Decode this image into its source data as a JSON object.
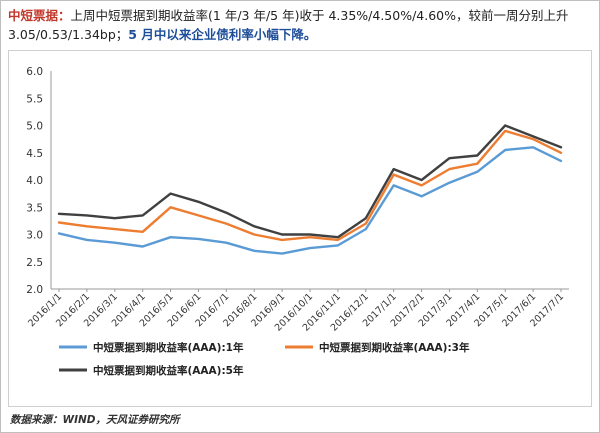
{
  "headline": {
    "lead": "中短票据：",
    "body": "上周中短票据到期收益率(1 年/3 年/5 年)收于 4.35%/4.50%/4.60%，较前一周分别上升 3.05/0.53/1.34bp；",
    "emph": "5 月中以来企业债利率小幅下降。"
  },
  "source": "数据来源：WIND，天风证券研究所",
  "chart_data": {
    "type": "line",
    "title": "",
    "xlabel": "",
    "ylabel": "",
    "ylim": [
      2.0,
      6.0
    ],
    "yticks": [
      "2.0",
      "2.5",
      "3.0",
      "3.5",
      "4.0",
      "4.5",
      "5.0",
      "5.5",
      "6.0"
    ],
    "xticks": [
      "2016/1/1",
      "2016/2/1",
      "2016/3/1",
      "2016/4/1",
      "2016/5/1",
      "2016/6/1",
      "2016/7/1",
      "2016/8/1",
      "2016/9/1",
      "2016/10/1",
      "2016/11/1",
      "2016/12/1",
      "2017/1/1",
      "2017/2/1",
      "2017/3/1",
      "2017/4/1",
      "2017/5/1",
      "2017/6/1",
      "2017/7/1"
    ],
    "x": [
      "2016/1/1",
      "2016/2/1",
      "2016/3/1",
      "2016/4/1",
      "2016/5/1",
      "2016/6/1",
      "2016/7/1",
      "2016/8/1",
      "2016/9/1",
      "2016/10/1",
      "2016/11/1",
      "2016/12/1",
      "2017/1/1",
      "2017/2/1",
      "2017/3/1",
      "2017/4/1",
      "2017/5/1",
      "2017/6/1",
      "2017/7/1"
    ],
    "grid": false,
    "legend_position": "bottom",
    "series": [
      {
        "name": "中短票据到期收益率(AAA):1年",
        "color": "#5b9bd5",
        "values": [
          3.02,
          2.9,
          2.85,
          2.78,
          2.95,
          2.92,
          2.85,
          2.7,
          2.65,
          2.75,
          2.8,
          3.1,
          3.9,
          3.7,
          3.95,
          4.15,
          4.55,
          4.6,
          4.35
        ]
      },
      {
        "name": "中短票据到期收益率(AAA):3年",
        "color": "#ed7d31",
        "values": [
          3.22,
          3.15,
          3.1,
          3.05,
          3.5,
          3.35,
          3.2,
          3.0,
          2.9,
          2.95,
          2.9,
          3.2,
          4.1,
          3.9,
          4.2,
          4.3,
          4.9,
          4.75,
          4.5
        ]
      },
      {
        "name": "中短票据到期收益率(AAA):5年",
        "color": "#404040",
        "values": [
          3.38,
          3.35,
          3.3,
          3.35,
          3.75,
          3.6,
          3.4,
          3.15,
          3.0,
          3.0,
          2.95,
          3.3,
          4.2,
          4.0,
          4.4,
          4.45,
          5.0,
          4.8,
          4.6
        ]
      }
    ]
  }
}
